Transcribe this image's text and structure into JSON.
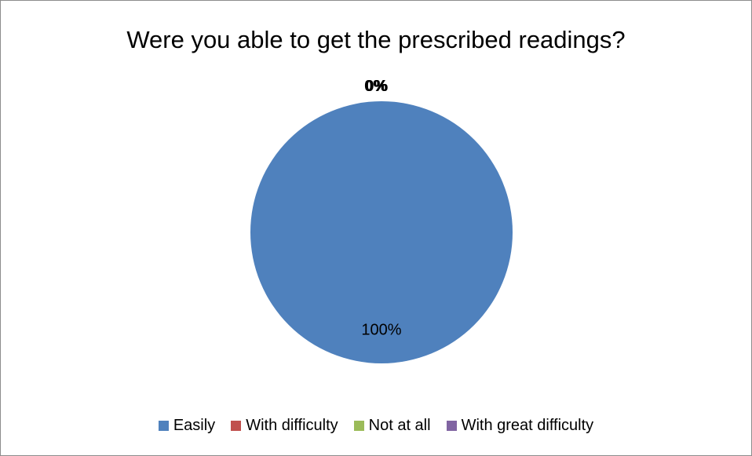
{
  "chart_data": {
    "type": "pie",
    "title": "Were you able to get the prescribed readings?",
    "categories": [
      "Easily",
      "With difficulty",
      "Not at all",
      "With great difficulty"
    ],
    "values": [
      100,
      0,
      0,
      0
    ],
    "data_labels": [
      "100%",
      "0%",
      "0%",
      "0%"
    ],
    "colors": [
      "#4f81bd",
      "#c0504d",
      "#9bbb59",
      "#8064a2"
    ],
    "legend_position": "bottom"
  }
}
